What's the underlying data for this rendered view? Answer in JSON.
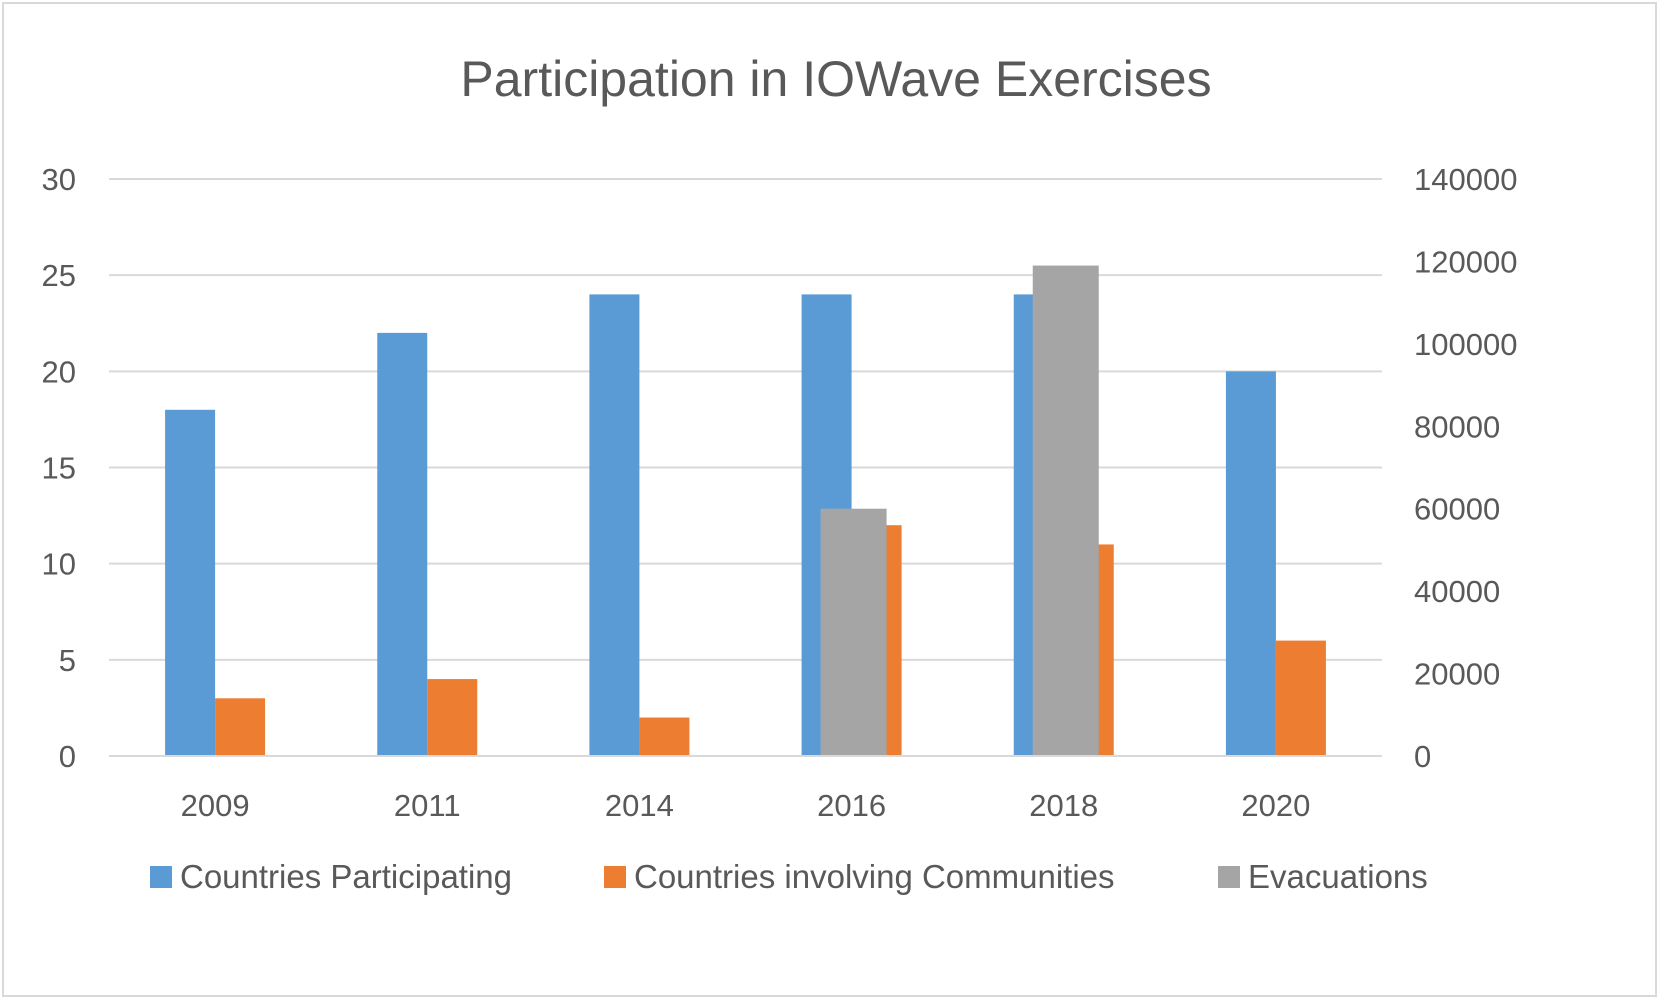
{
  "chart_data": {
    "type": "bar",
    "title": "Participation in IOWave Exercises",
    "categories": [
      "2009",
      "2011",
      "2014",
      "2016",
      "2018",
      "2020"
    ],
    "y_left": {
      "ticks": [
        "0",
        "5",
        "10",
        "15",
        "20",
        "25",
        "30"
      ],
      "ylim": [
        0,
        30
      ]
    },
    "y_right": {
      "ticks": [
        "0",
        "20000",
        "40000",
        "60000",
        "80000",
        "100000",
        "120000",
        "140000"
      ],
      "ylim": [
        0,
        140000
      ]
    },
    "series": [
      {
        "name": "Countries Participating",
        "axis": "left",
        "color": "#5b9bd5",
        "values": [
          18,
          22,
          24,
          24,
          24,
          20
        ]
      },
      {
        "name": "Countries involving Communities",
        "axis": "left",
        "color": "#ed7d31",
        "values": [
          3,
          4,
          2,
          12,
          11,
          6
        ]
      },
      {
        "name": "Evacuations",
        "axis": "right",
        "color": "#a5a5a5",
        "values": [
          null,
          null,
          null,
          60000,
          119000,
          null
        ]
      }
    ],
    "grid": true,
    "legend_position": "bottom"
  }
}
